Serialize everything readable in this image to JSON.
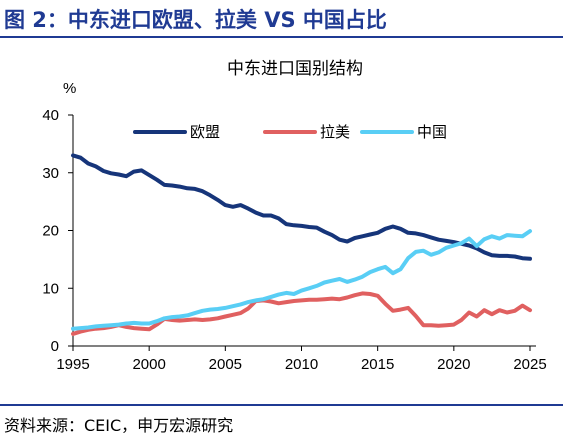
{
  "header": {
    "title": "图 2：中东进口欧盟、拉美 VS 中国占比"
  },
  "footer": {
    "source": "资料来源：CEIC，申万宏源研究"
  },
  "chart_data": {
    "type": "line",
    "title": "中东进口国别结构",
    "ylabel": "%",
    "xlabel": "",
    "xlim": [
      1995,
      2025
    ],
    "ylim": [
      0,
      40
    ],
    "xticks": [
      "1995",
      "2000",
      "2005",
      "2010",
      "2015",
      "2020",
      "2025"
    ],
    "yticks": [
      "0",
      "10",
      "20",
      "30",
      "40"
    ],
    "grid": false,
    "legend_position": "top",
    "series": [
      {
        "name": "欧盟",
        "color": "#16357a",
        "x": [
          1995.0,
          1995.5,
          1996.0,
          1996.5,
          1997.0,
          1997.5,
          1998.0,
          1998.5,
          1999.0,
          1999.5,
          2000.0,
          2000.5,
          2001.0,
          2001.5,
          2002.0,
          2002.5,
          2003.0,
          2003.5,
          2004.0,
          2004.5,
          2005.0,
          2005.5,
          2006.0,
          2006.5,
          2007.0,
          2007.5,
          2008.0,
          2008.5,
          2009.0,
          2009.5,
          2010.0,
          2010.5,
          2011.0,
          2011.5,
          2012.0,
          2012.5,
          2013.0,
          2013.5,
          2014.0,
          2014.5,
          2015.0,
          2015.5,
          2016.0,
          2016.5,
          2017.0,
          2017.5,
          2018.0,
          2018.5,
          2019.0,
          2019.5,
          2020.0,
          2020.5,
          2021.0,
          2021.5,
          2022.0,
          2022.5,
          2023.0,
          2023.5,
          2024.0,
          2024.5,
          2025.0
        ],
        "values": [
          33.0,
          32.6,
          31.6,
          31.1,
          30.3,
          29.9,
          29.7,
          29.4,
          30.2,
          30.4,
          29.6,
          28.8,
          27.9,
          27.8,
          27.6,
          27.3,
          27.2,
          26.8,
          26.1,
          25.3,
          24.4,
          24.1,
          24.4,
          23.8,
          23.1,
          22.6,
          22.6,
          22.1,
          21.1,
          20.9,
          20.8,
          20.6,
          20.5,
          19.8,
          19.2,
          18.4,
          18.1,
          18.7,
          19.0,
          19.3,
          19.6,
          20.3,
          20.7,
          20.3,
          19.6,
          19.5,
          19.2,
          18.8,
          18.4,
          18.2,
          18.0,
          17.7,
          17.4,
          16.9,
          16.2,
          15.7,
          15.6,
          15.6,
          15.5,
          15.2,
          15.1
        ]
      },
      {
        "name": "拉美",
        "color": "#e06060",
        "x": [
          1995.0,
          1995.5,
          1996.0,
          1996.5,
          1997.0,
          1997.5,
          1998.0,
          1998.5,
          1999.0,
          1999.5,
          2000.0,
          2000.5,
          2001.0,
          2001.5,
          2002.0,
          2002.5,
          2003.0,
          2003.5,
          2004.0,
          2004.5,
          2005.0,
          2005.5,
          2006.0,
          2006.5,
          2007.0,
          2007.5,
          2008.0,
          2008.5,
          2009.0,
          2009.5,
          2010.0,
          2010.5,
          2011.0,
          2011.5,
          2012.0,
          2012.5,
          2013.0,
          2013.5,
          2014.0,
          2014.5,
          2015.0,
          2015.5,
          2016.0,
          2016.5,
          2017.0,
          2017.5,
          2018.0,
          2018.5,
          2019.0,
          2019.5,
          2020.0,
          2020.5,
          2021.0,
          2021.5,
          2022.0,
          2022.5,
          2023.0,
          2023.5,
          2024.0,
          2024.5,
          2025.0
        ],
        "values": [
          2.1,
          2.5,
          2.8,
          3.0,
          3.1,
          3.3,
          3.6,
          3.3,
          3.1,
          3.0,
          2.9,
          3.7,
          4.7,
          4.5,
          4.4,
          4.5,
          4.6,
          4.5,
          4.6,
          4.8,
          5.1,
          5.4,
          5.7,
          6.5,
          7.8,
          7.9,
          7.7,
          7.4,
          7.6,
          7.8,
          7.9,
          8.0,
          8.0,
          8.1,
          8.2,
          8.1,
          8.4,
          8.8,
          9.1,
          9.0,
          8.7,
          7.3,
          6.1,
          6.3,
          6.6,
          5.2,
          3.6,
          3.6,
          3.5,
          3.6,
          3.7,
          4.5,
          5.8,
          5.1,
          6.2,
          5.5,
          6.2,
          5.8,
          6.1,
          7.0,
          6.2
        ]
      },
      {
        "name": "中国",
        "color": "#59cef5",
        "x": [
          1995.0,
          1995.5,
          1996.0,
          1996.5,
          1997.0,
          1997.5,
          1998.0,
          1998.5,
          1999.0,
          1999.5,
          2000.0,
          2000.5,
          2001.0,
          2001.5,
          2002.0,
          2002.5,
          2003.0,
          2003.5,
          2004.0,
          2004.5,
          2005.0,
          2005.5,
          2006.0,
          2006.5,
          2007.0,
          2007.5,
          2008.0,
          2008.5,
          2009.0,
          2009.5,
          2010.0,
          2010.5,
          2011.0,
          2011.5,
          2012.0,
          2012.5,
          2013.0,
          2013.5,
          2014.0,
          2014.5,
          2015.0,
          2015.5,
          2016.0,
          2016.5,
          2017.0,
          2017.5,
          2018.0,
          2018.5,
          2019.0,
          2019.5,
          2020.0,
          2020.5,
          2021.0,
          2021.5,
          2022.0,
          2022.5,
          2023.0,
          2023.5,
          2024.0,
          2024.5,
          2025.0
        ],
        "values": [
          3.0,
          3.1,
          3.2,
          3.4,
          3.5,
          3.6,
          3.7,
          3.9,
          4.0,
          3.9,
          3.9,
          4.3,
          4.8,
          5.0,
          5.1,
          5.3,
          5.7,
          6.1,
          6.3,
          6.4,
          6.6,
          6.9,
          7.2,
          7.6,
          7.9,
          8.1,
          8.5,
          8.9,
          9.2,
          9.0,
          9.6,
          10.0,
          10.4,
          11.0,
          11.3,
          11.6,
          11.1,
          11.5,
          12.0,
          12.8,
          13.3,
          13.7,
          12.6,
          13.3,
          15.2,
          16.3,
          16.5,
          15.8,
          16.2,
          17.0,
          17.4,
          17.8,
          18.6,
          17.3,
          18.5,
          19.0,
          18.6,
          19.2,
          19.1,
          19.0,
          19.9
        ]
      }
    ]
  }
}
